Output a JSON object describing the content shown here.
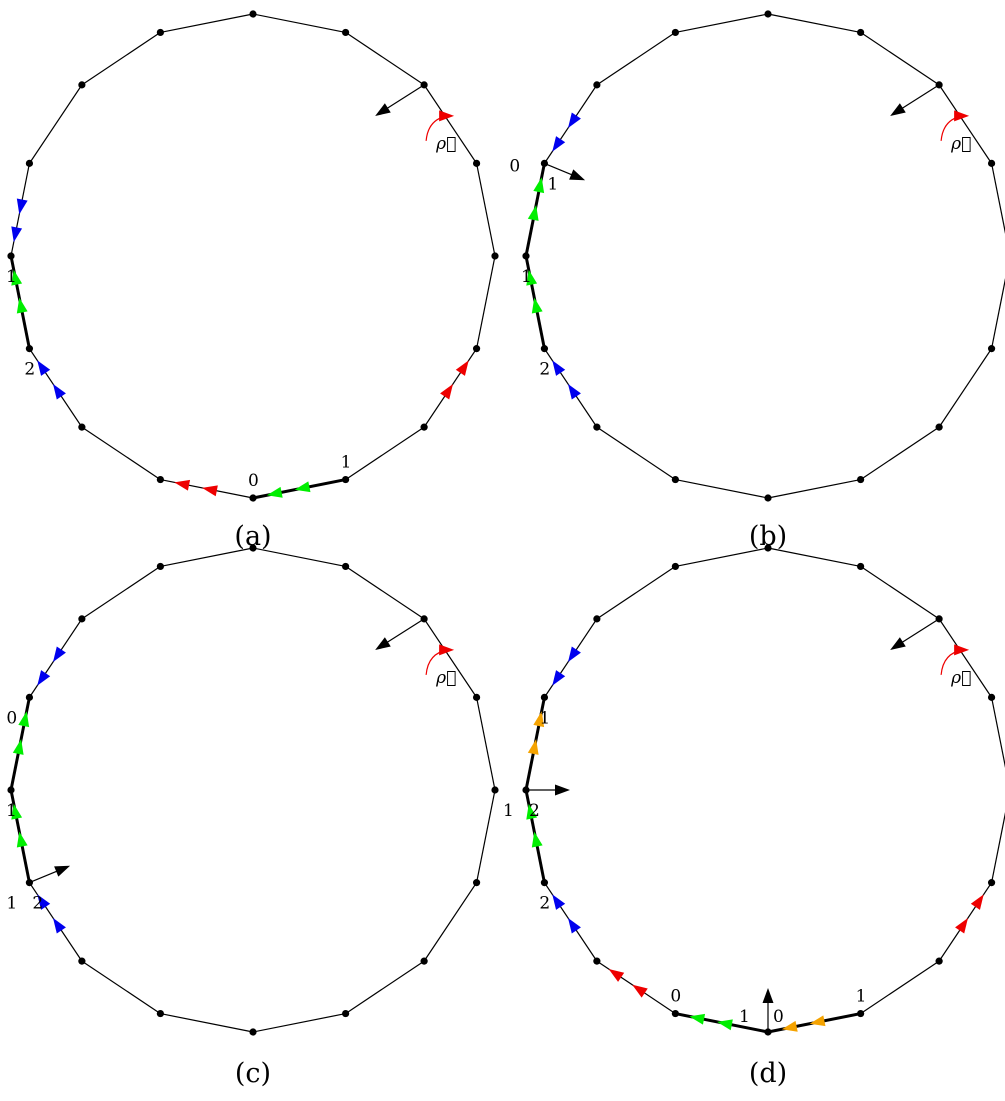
{
  "colors": {
    "blue": "#0000ee",
    "green": "#00ee00",
    "red": "#ee0000",
    "orange": "#f5a300",
    "black": "#000000"
  },
  "panels": [
    {
      "id": "a",
      "caption": "(a)",
      "rho_label": "ρ⃗",
      "thick_edges": [
        [
          3,
          4
        ],
        [
          0,
          15
        ]
      ],
      "arrows": [
        {
          "edge": [
            2,
            3
          ],
          "color": "blue",
          "dir": "forward"
        },
        {
          "edge": [
            4,
            5
          ],
          "color": "blue",
          "dir": "backward"
        },
        {
          "edge": [
            3,
            4
          ],
          "color": "green",
          "dir": "forward"
        },
        {
          "edge": [
            0,
            15
          ],
          "color": "green",
          "dir": "backward"
        },
        {
          "edge": [
            14,
            13
          ],
          "color": "red",
          "dir": "forward"
        },
        {
          "edge": [
            1,
            0
          ],
          "color": "red",
          "dir": "backward"
        }
      ],
      "vertex_arrows": [],
      "labels": [
        {
          "text": "2",
          "vertex": 3,
          "pos": "below"
        },
        {
          "text": "1",
          "vertex": 4,
          "pos": "below"
        },
        {
          "text": "0",
          "vertex": 0,
          "pos": "above"
        },
        {
          "text": "1",
          "vertex": 15,
          "pos": "above"
        }
      ]
    },
    {
      "id": "b",
      "caption": "(b)",
      "rho_label": "ρ⃗",
      "thick_edges": [
        [
          3,
          4
        ],
        [
          4,
          5
        ]
      ],
      "arrows": [
        {
          "edge": [
            2,
            3
          ],
          "color": "blue",
          "dir": "forward"
        },
        {
          "edge": [
            5,
            6
          ],
          "color": "blue",
          "dir": "backward"
        },
        {
          "edge": [
            3,
            4
          ],
          "color": "green",
          "dir": "forward"
        },
        {
          "edge": [
            4,
            5
          ],
          "color": "green",
          "dir": "forward"
        }
      ],
      "vertex_arrows": [
        {
          "vertex": 5,
          "dir": "inward"
        }
      ],
      "labels": [
        {
          "text": "2",
          "vertex": 3,
          "pos": "below"
        },
        {
          "text": "1",
          "vertex": 4,
          "pos": "below"
        },
        {
          "text": "0",
          "vertex": 5,
          "pos": "left"
        },
        {
          "text": "1",
          "vertex": 5,
          "pos": "below-right"
        }
      ]
    },
    {
      "id": "c",
      "caption": "(c)",
      "rho_label": "ρ⃗",
      "thick_edges": [
        [
          3,
          4
        ],
        [
          4,
          5
        ]
      ],
      "arrows": [
        {
          "edge": [
            2,
            3
          ],
          "color": "blue",
          "dir": "forward"
        },
        {
          "edge": [
            5,
            6
          ],
          "color": "blue",
          "dir": "backward"
        },
        {
          "edge": [
            3,
            4
          ],
          "color": "green",
          "dir": "forward"
        },
        {
          "edge": [
            4,
            5
          ],
          "color": "green",
          "dir": "forward"
        }
      ],
      "vertex_arrows": [
        {
          "vertex": 3,
          "dir": "inward"
        }
      ],
      "labels": [
        {
          "text": "1",
          "vertex": 3,
          "pos": "below-left"
        },
        {
          "text": "2",
          "vertex": 3,
          "pos": "below-right"
        },
        {
          "text": "1",
          "vertex": 4,
          "pos": "below"
        },
        {
          "text": "0",
          "vertex": 5,
          "pos": "below-left"
        }
      ]
    },
    {
      "id": "d",
      "caption": "(d)",
      "rho_label": "ρ⃗",
      "thick_edges": [
        [
          3,
          4
        ],
        [
          4,
          5
        ],
        [
          1,
          0
        ],
        [
          0,
          15
        ]
      ],
      "arrows": [
        {
          "edge": [
            2,
            3
          ],
          "color": "blue",
          "dir": "forward"
        },
        {
          "edge": [
            5,
            6
          ],
          "color": "blue",
          "dir": "backward"
        },
        {
          "edge": [
            3,
            4
          ],
          "color": "green",
          "dir": "forward"
        },
        {
          "edge": [
            4,
            5
          ],
          "color": "orange",
          "dir": "forward"
        },
        {
          "edge": [
            1,
            0
          ],
          "color": "green",
          "dir": "backward"
        },
        {
          "edge": [
            0,
            15
          ],
          "color": "orange",
          "dir": "backward"
        },
        {
          "edge": [
            14,
            13
          ],
          "color": "red",
          "dir": "forward"
        },
        {
          "edge": [
            2,
            1
          ],
          "color": "red",
          "dir": "backward"
        }
      ],
      "vertex_arrows": [
        {
          "vertex": 4,
          "dir": "inward"
        },
        {
          "vertex": 0,
          "dir": "inward"
        }
      ],
      "labels": [
        {
          "text": "2",
          "vertex": 3,
          "pos": "below"
        },
        {
          "text": "1",
          "vertex": 4,
          "pos": "below-left"
        },
        {
          "text": "2",
          "vertex": 4,
          "pos": "below-right"
        },
        {
          "text": "1",
          "vertex": 5,
          "pos": "below"
        },
        {
          "text": "0",
          "vertex": 1,
          "pos": "above"
        },
        {
          "text": "1",
          "vertex": 0,
          "pos": "above-left"
        },
        {
          "text": "0",
          "vertex": 0,
          "pos": "above-right"
        },
        {
          "text": "1",
          "vertex": 15,
          "pos": "above"
        }
      ]
    }
  ]
}
